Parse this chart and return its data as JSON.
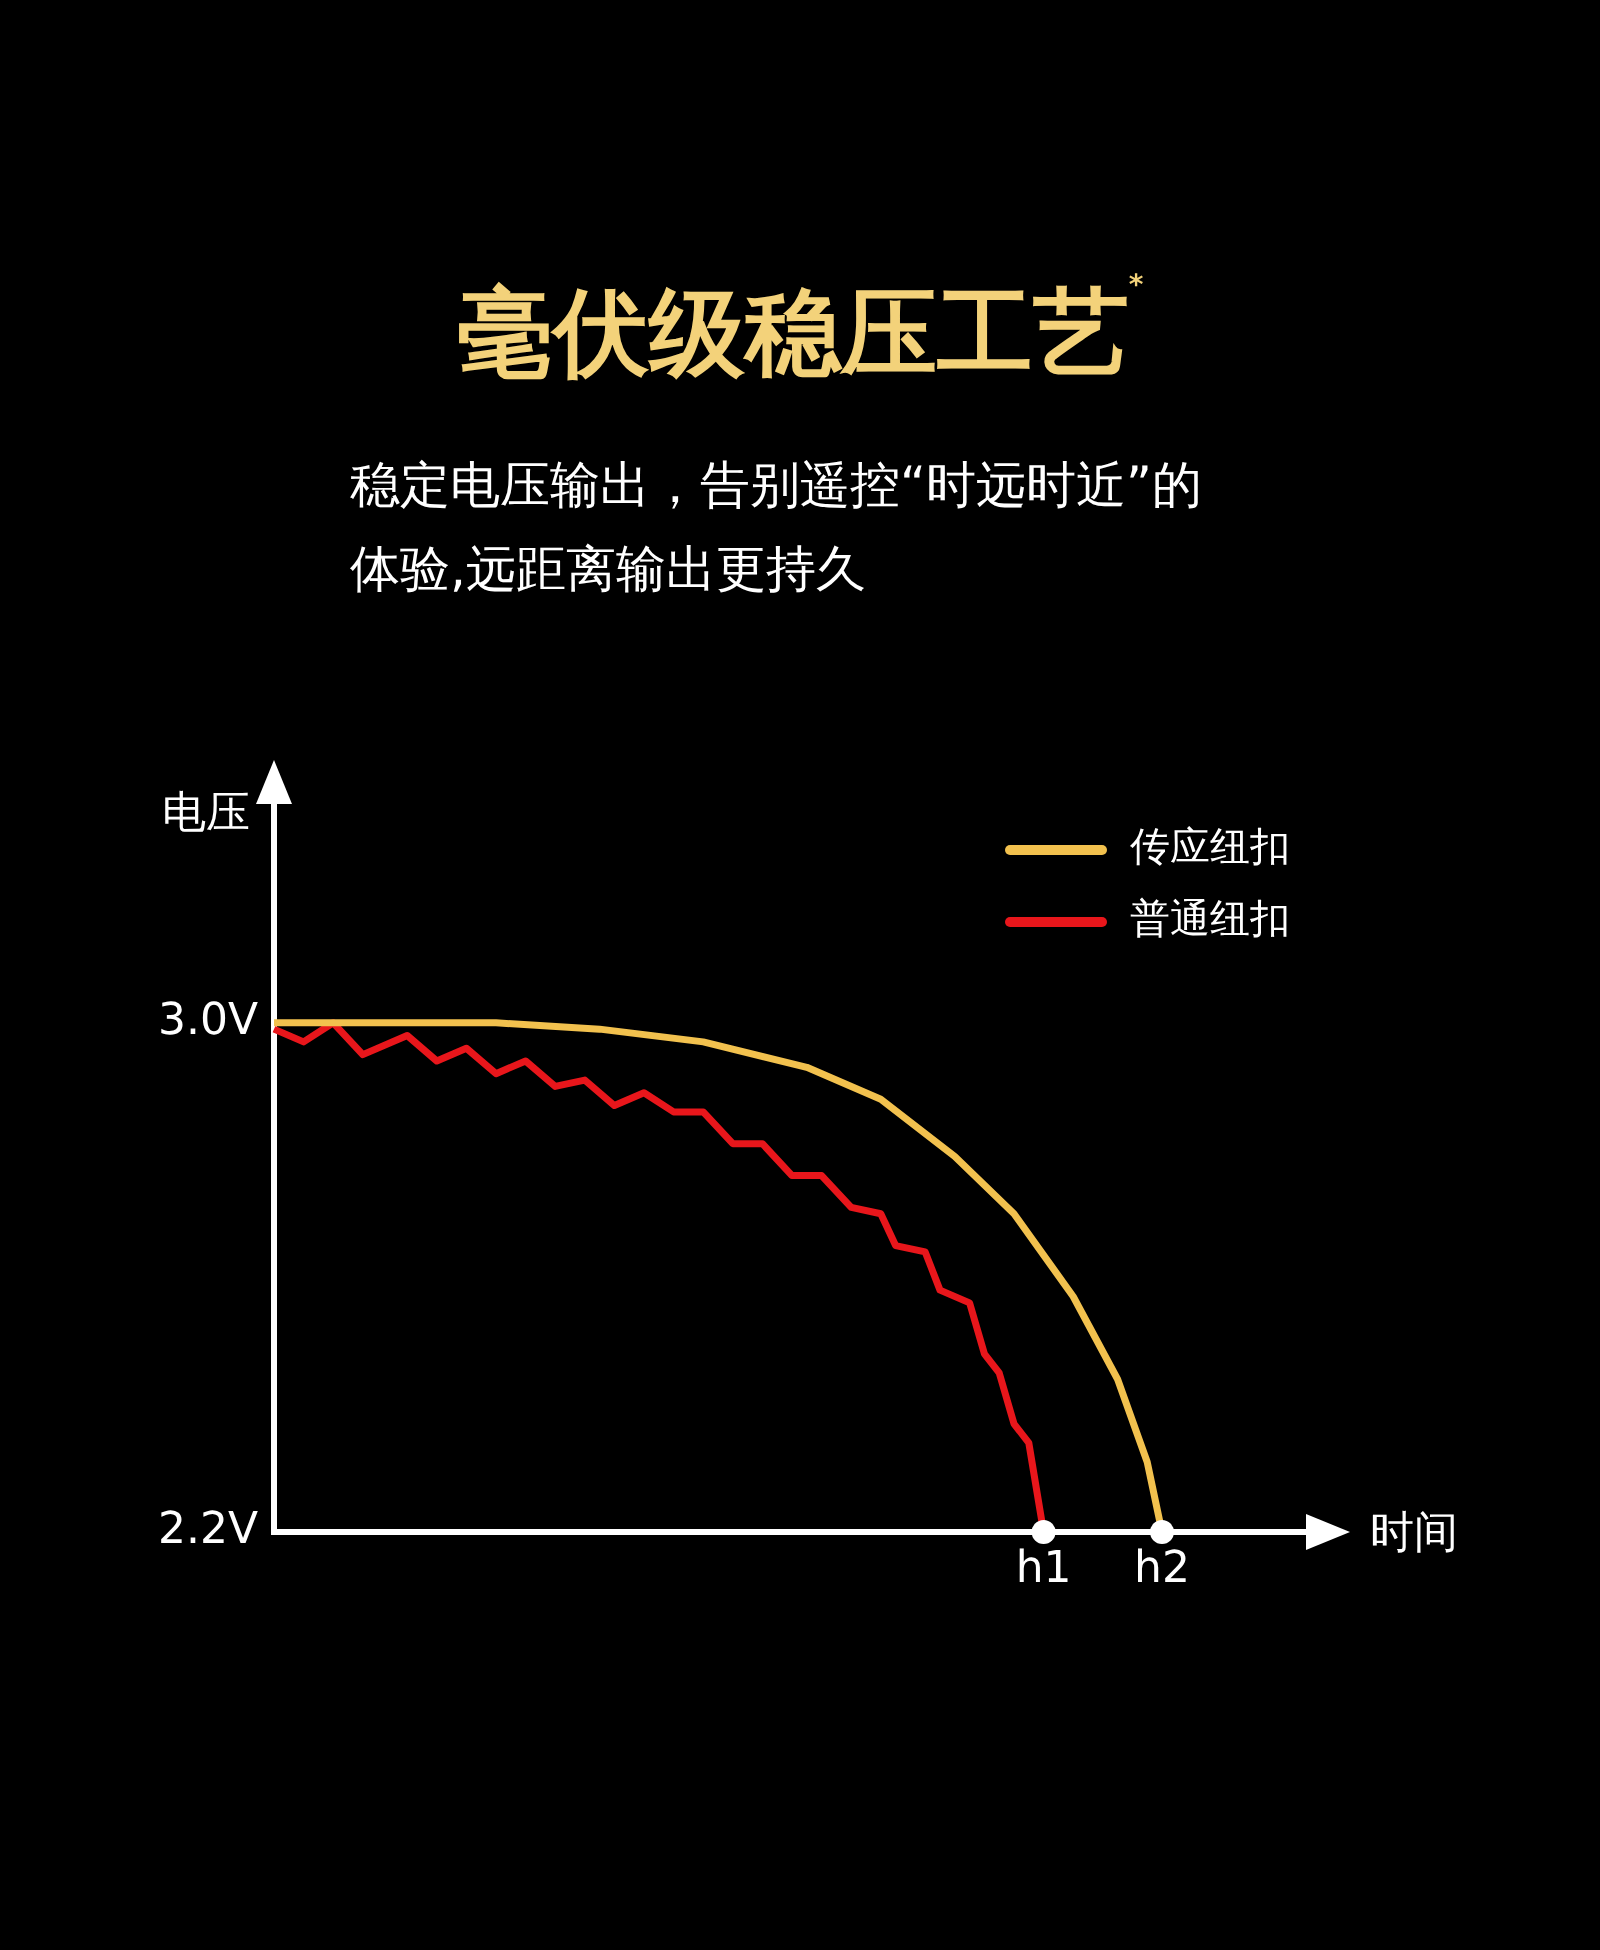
{
  "chart_data": {
    "type": "line",
    "title": "毫伏级稳压工艺$^{*}$",
    "subtitle": "稳定电压输出，告别遥控“时远时近”的体验,远距离输出更持久",
    "ylabel": "电压",
    "xlabel": "时间",
    "categories": [
      null,
      null,
      null,
      null,
      null,
      null,
      null,
      null,
      null,
      null,
      null,
      null,
      null,
      null,
      null,
      null,
      null,
      null,
      null,
      null,
      null,
      null,
      null,
      null,
      null,
      null,
      null,
      null,
      null,
      null,
      null,
      null,
      null,
      null,
      null,
      null,
      null,
      null,
      null,
      null,
      null,
      null,
      null,
      null,
      null,
      null,
      null,
      null,
      null,
      null,
      null,
      null,
      "h1",
      null,
      null,
      null,
      null,
      null,
      null,
      null,
      "h2",
      null,
      null,
      null,
      null,
      null,
      null,
      null,
      null,
      null,
      null
    ],
    "ylim": [
      2.2,
      3.35
    ],
    "yticks": [
      {
        "value": 2.2,
        "label": "2.2V"
      },
      {
        "value": 3.0,
        "label": "3.0V"
      }
    ],
    "grid": false,
    "legend": "top right",
    "marker": "none",
    "line_style": "solid",
    "series": [
      {
        "name": "传应纽扣",
        "color": "#f2c14e",
        "values": [
          3.0,
          null,
          null,
          null,
          null,
          null,
          null,
          null,
          null,
          null,
          null,
          null,
          null,
          null,
          null,
          3.0,
          null,
          null,
          null,
          null,
          null,
          null,
          2.99,
          null,
          null,
          null,
          null,
          null,
          null,
          2.97,
          null,
          null,
          null,
          null,
          null,
          null,
          2.93,
          null,
          null,
          null,
          null,
          2.88,
          null,
          null,
          null,
          null,
          2.79,
          null,
          null,
          null,
          2.7,
          null,
          null,
          null,
          2.57,
          null,
          null,
          2.44,
          null,
          2.31,
          2.2,
          null,
          null,
          null,
          null,
          null,
          null,
          null,
          null,
          null,
          null
        ]
      },
      {
        "name": "普通纽扣",
        "color": "#e8161b",
        "values": [
          2.99,
          null,
          2.97,
          null,
          3.0,
          null,
          2.95,
          null,
          null,
          2.98,
          null,
          2.94,
          null,
          2.96,
          null,
          2.92,
          null,
          2.94,
          null,
          2.9,
          null,
          2.91,
          null,
          2.87,
          null,
          2.89,
          null,
          2.86,
          null,
          2.86,
          null,
          2.81,
          null,
          2.81,
          null,
          2.76,
          null,
          2.76,
          null,
          2.71,
          null,
          2.7,
          2.65,
          null,
          2.64,
          2.58,
          null,
          2.56,
          2.48,
          2.45,
          2.37,
          2.34,
          2.2,
          null,
          null,
          null,
          null,
          null,
          null,
          null,
          null,
          null,
          null,
          null,
          null,
          null,
          null,
          null,
          null,
          null,
          null
        ]
      }
    ]
  }
}
